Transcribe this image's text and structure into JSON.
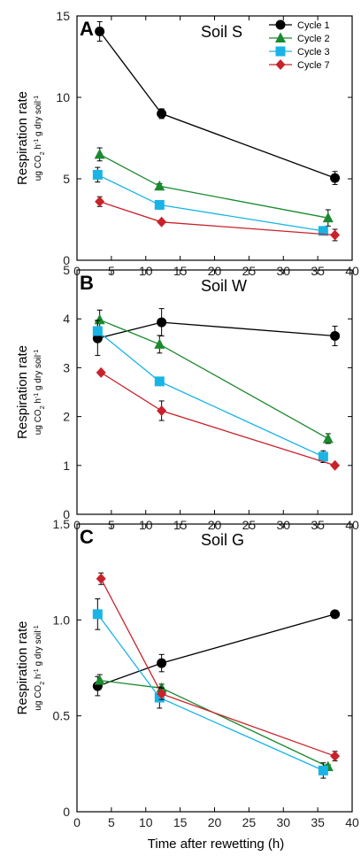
{
  "figure": {
    "xlabel": "Time after rewetting (h)",
    "ylabel_main": "Respiration rate",
    "ylabel_unit": "ug CO2 h-1 g dry soil-1",
    "ylabel_unit_parts": [
      "ug CO",
      "2",
      " h",
      "-1",
      " g dry soil",
      "-1"
    ]
  },
  "legend": [
    {
      "name": "Cycle 1",
      "color": "#000000",
      "marker": "circle"
    },
    {
      "name": "Cycle 2",
      "color": "#1a8a2e",
      "marker": "triangle"
    },
    {
      "name": "Cycle 3",
      "color": "#19b4e6",
      "marker": "square"
    },
    {
      "name": "Cycle 7",
      "color": "#c8232a",
      "marker": "diamond"
    }
  ],
  "chart_data": [
    {
      "type": "line",
      "panel": "A",
      "title": "Soil S",
      "xlim": [
        0,
        40
      ],
      "ylim": [
        0,
        15
      ],
      "xticks": [
        "0",
        "5",
        "10",
        "15",
        "20",
        "25",
        "30",
        "35",
        "40"
      ],
      "xtick_values": [
        0,
        5,
        10,
        15,
        20,
        25,
        30,
        35,
        40
      ],
      "yticks": [
        "0",
        "5",
        "10",
        "15"
      ],
      "ytick_values": [
        0,
        5,
        10,
        15
      ],
      "series": [
        {
          "name": "Cycle 1",
          "x": [
            3.3,
            12.3,
            37.5
          ],
          "y": [
            14.05,
            9.0,
            5.05
          ],
          "err": [
            0.6,
            0.3,
            0.4
          ]
        },
        {
          "name": "Cycle 2",
          "x": [
            3.3,
            12.0,
            36.5
          ],
          "y": [
            6.5,
            4.55,
            2.6
          ],
          "err": [
            0.4,
            0.15,
            0.5
          ]
        },
        {
          "name": "Cycle 3",
          "x": [
            3.0,
            12.0,
            35.8
          ],
          "y": [
            5.25,
            3.4,
            1.8
          ],
          "err": [
            0.45,
            0.15,
            0.1
          ]
        },
        {
          "name": "Cycle 7",
          "x": [
            3.3,
            12.3,
            37.5
          ],
          "y": [
            3.6,
            2.35,
            1.55
          ],
          "err": [
            0.3,
            0.1,
            0.35
          ]
        }
      ]
    },
    {
      "type": "line",
      "panel": "B",
      "title": "Soil W",
      "xlim": [
        0,
        40
      ],
      "ylim": [
        0,
        5
      ],
      "xticks": [
        "0",
        "5",
        "10",
        "15",
        "20",
        "25",
        "30",
        "35",
        "40"
      ],
      "xtick_values": [
        0,
        5,
        10,
        15,
        20,
        25,
        30,
        35,
        40
      ],
      "yticks": [
        "0",
        "1",
        "2",
        "3",
        "4",
        "5"
      ],
      "ytick_values": [
        0,
        1,
        2,
        3,
        4,
        5
      ],
      "series": [
        {
          "name": "Cycle 1",
          "x": [
            3.0,
            12.3,
            37.5
          ],
          "y": [
            3.6,
            3.93,
            3.65
          ],
          "err": [
            0.35,
            0.28,
            0.2
          ]
        },
        {
          "name": "Cycle 2",
          "x": [
            3.3,
            12.0,
            36.5
          ],
          "y": [
            3.98,
            3.48,
            1.55
          ],
          "err": [
            0.2,
            0.18,
            0.1
          ]
        },
        {
          "name": "Cycle 3",
          "x": [
            3.0,
            12.0,
            35.8
          ],
          "y": [
            3.75,
            2.72,
            1.18
          ],
          "err": [
            0.22,
            0.07,
            0.12
          ]
        },
        {
          "name": "Cycle 7",
          "x": [
            3.5,
            12.3,
            37.5
          ],
          "y": [
            2.9,
            2.12,
            1.0
          ],
          "err": [
            0.04,
            0.2,
            0.04
          ]
        }
      ]
    },
    {
      "type": "line",
      "panel": "C",
      "title": "Soil G",
      "xlim": [
        0,
        40
      ],
      "ylim": [
        0,
        1.5
      ],
      "xticks": [
        "0",
        "5",
        "10",
        "15",
        "20",
        "25",
        "30",
        "35",
        "40"
      ],
      "xtick_values": [
        0,
        5,
        10,
        15,
        20,
        25,
        30,
        35,
        40
      ],
      "yticks": [
        "0",
        "0.5",
        "1.0",
        "1.5"
      ],
      "ytick_values": [
        0,
        0.5,
        1.0,
        1.5
      ],
      "series": [
        {
          "name": "Cycle 1",
          "x": [
            3.0,
            12.3,
            37.5
          ],
          "y": [
            0.655,
            0.775,
            1.03
          ],
          "err": [
            0.05,
            0.045,
            0.01
          ]
        },
        {
          "name": "Cycle 2",
          "x": [
            3.3,
            12.3,
            36.5
          ],
          "y": [
            0.685,
            0.645,
            0.235
          ],
          "err": [
            0.03,
            0.02,
            0.01
          ]
        },
        {
          "name": "Cycle 3",
          "x": [
            3.0,
            12.0,
            35.8
          ],
          "y": [
            1.03,
            0.595,
            0.215
          ],
          "err": [
            0.08,
            0.055,
            0.04
          ]
        },
        {
          "name": "Cycle 7",
          "x": [
            3.5,
            12.3,
            37.5
          ],
          "y": [
            1.215,
            0.615,
            0.29
          ],
          "err": [
            0.03,
            0.03,
            0.025
          ]
        }
      ]
    }
  ]
}
